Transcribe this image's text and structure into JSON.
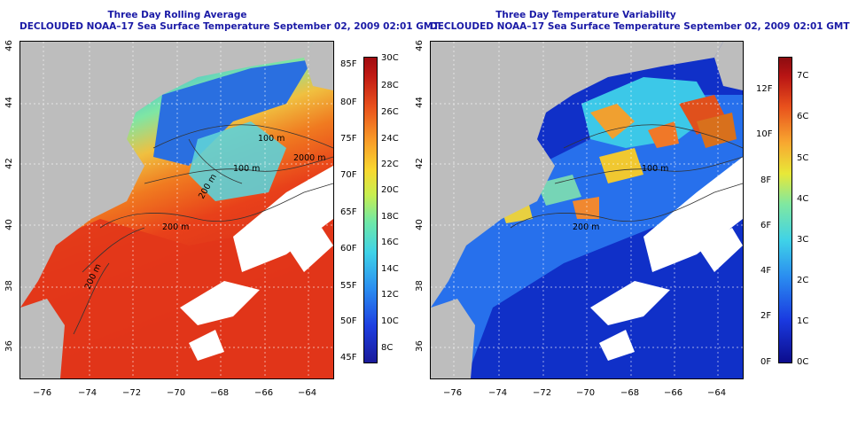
{
  "left_panel": {
    "title_line1": "Three Day Rolling Average",
    "title_line2": "DECLOUDED NOAA–17 Sea Surface Temperature September 02, 2009 02:01 GMT",
    "x_ticks": [
      "−76",
      "−74",
      "−72",
      "−70",
      "−68",
      "−66",
      "−64"
    ],
    "y_ticks": [
      "46",
      "44",
      "42",
      "40",
      "38",
      "36"
    ],
    "contour_labels": [
      "100 m",
      "100 m",
      "2000 m",
      "200 m",
      "200 m",
      "200 m"
    ],
    "colorbar_celsius": [
      "30C",
      "28C",
      "26C",
      "24C",
      "22C",
      "20C",
      "18C",
      "16C",
      "14C",
      "12C",
      "10C",
      "8C"
    ],
    "colorbar_fahrenheit": [
      "85F",
      "80F",
      "75F",
      "70F",
      "65F",
      "60F",
      "55F",
      "50F",
      "45F"
    ]
  },
  "right_panel": {
    "title_line1": "Three Day Temperature Variability",
    "title_line2": "DECLOUDED NOAA–17 Sea Surface Temperature September 02, 2009 02:01 GMT",
    "x_ticks": [
      "−76",
      "−74",
      "−72",
      "−70",
      "−68",
      "−66",
      "−64"
    ],
    "y_ticks": [
      "46",
      "44",
      "42",
      "40",
      "38",
      "36"
    ],
    "contour_labels": [
      "100 m",
      "200 m"
    ],
    "colorbar_fahrenheit": [
      "12F",
      "10F",
      "8F",
      "6F",
      "4F",
      "2F",
      "0F"
    ],
    "colorbar_celsius": [
      "7C",
      "6C",
      "5C",
      "4C",
      "3C",
      "2C",
      "1C",
      "0C"
    ]
  },
  "colors": {
    "land": "#bdbdbd",
    "cloud": "#ffffff",
    "title": "#1a1aa6"
  }
}
